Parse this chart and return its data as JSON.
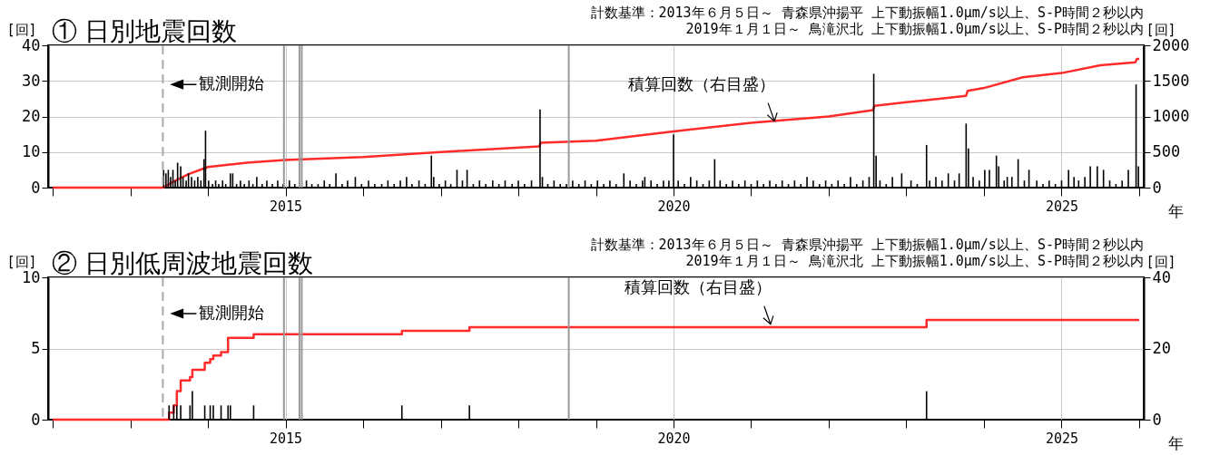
{
  "chart_data": [
    {
      "type": "bar",
      "title": "① 日別地震回数",
      "ylabel": "[回]",
      "y2label": "[回]",
      "xlabel": "年",
      "xlim": [
        2012,
        2026
      ],
      "xticks": [
        {
          "value": 2012,
          "label": null
        },
        {
          "value": 2013,
          "label": null
        },
        {
          "value": 2014,
          "label": null
        },
        2015,
        {
          "value": 2016,
          "label": null
        },
        {
          "value": 2017,
          "label": null
        },
        {
          "value": 2018,
          "label": null
        },
        {
          "value": 2019,
          "label": null
        },
        2020,
        {
          "value": 2021,
          "label": null
        },
        {
          "value": 2022,
          "label": null
        },
        {
          "value": 2023,
          "label": null
        },
        {
          "value": 2024,
          "label": null
        },
        2025,
        {
          "value": 2026,
          "label": null
        }
      ],
      "ylim": [
        0,
        40
      ],
      "yticks": [
        0,
        10,
        20,
        30,
        40
      ],
      "y2lim": [
        0,
        2000
      ],
      "y2ticks": [
        0,
        500,
        1000,
        1500,
        2000
      ],
      "grid": true,
      "series": [
        {
          "color": "#000000",
          "x": [
            2013.43,
            2013.46,
            2013.49,
            2013.52,
            2013.55,
            2013.58,
            2013.61,
            2013.65,
            2013.68,
            2013.72,
            2013.75,
            2013.79,
            2013.83,
            2013.87,
            2013.91,
            2013.95,
            2013.97,
            2014.01,
            2014.06,
            2014.1,
            2014.14,
            2014.19,
            2014.23,
            2014.29,
            2014.32,
            2014.37,
            2014.42,
            2014.47,
            2014.53,
            2014.58,
            2014.63,
            2014.7,
            2014.76,
            2014.83,
            2014.9,
            2014.97,
            2015.05,
            2015.12,
            2015.27,
            2015.34,
            2015.42,
            2015.5,
            2015.57,
            2015.65,
            2015.73,
            2015.8,
            2015.9,
            2015.98,
            2016.07,
            2016.15,
            2016.24,
            2016.32,
            2016.4,
            2016.48,
            2016.56,
            2016.63,
            2016.72,
            2016.8,
            2016.88,
            2016.91,
            2016.98,
            2017.06,
            2017.13,
            2017.21,
            2017.28,
            2017.34,
            2017.42,
            2017.5,
            2017.58,
            2017.67,
            2017.75,
            2017.83,
            2017.92,
            2018.0,
            2018.08,
            2018.17,
            2018.28,
            2018.31,
            2018.38,
            2018.46,
            2018.54,
            2018.62,
            2018.7,
            2018.78,
            2018.86,
            2018.94,
            2019.02,
            2019.1,
            2019.18,
            2019.26,
            2019.36,
            2019.44,
            2019.52,
            2019.6,
            2019.63,
            2019.71,
            2019.79,
            2019.87,
            2019.94,
            2020.0,
            2020.06,
            2020.14,
            2020.22,
            2020.3,
            2020.38,
            2020.46,
            2020.53,
            2020.6,
            2020.68,
            2020.76,
            2020.84,
            2020.92,
            2021.0,
            2021.08,
            2021.16,
            2021.24,
            2021.32,
            2021.4,
            2021.48,
            2021.56,
            2021.64,
            2021.72,
            2021.8,
            2021.88,
            2021.96,
            2022.04,
            2022.12,
            2022.2,
            2022.28,
            2022.36,
            2022.44,
            2022.52,
            2022.58,
            2022.61,
            2022.66,
            2022.74,
            2022.82,
            2022.94,
            2023.06,
            2023.14,
            2023.26,
            2023.3,
            2023.38,
            2023.46,
            2023.54,
            2023.62,
            2023.68,
            2023.77,
            2023.8,
            2023.86,
            2023.94,
            2024.01,
            2024.07,
            2024.16,
            2024.19,
            2024.26,
            2024.3,
            2024.36,
            2024.44,
            2024.52,
            2024.58,
            2024.68,
            2024.76,
            2024.84,
            2024.92,
            2025.0,
            2025.09,
            2025.16,
            2025.22,
            2025.3,
            2025.37,
            2025.46,
            2025.54,
            2025.62,
            2025.7,
            2025.78,
            2025.86,
            2025.96,
            2025.99
          ],
          "values": [
            5,
            4,
            5,
            3,
            5,
            2,
            7,
            6,
            3,
            2,
            4,
            3,
            2,
            3,
            2,
            8,
            16,
            2,
            1,
            2,
            1,
            2,
            1,
            4,
            4,
            1,
            2,
            1,
            2,
            1,
            3,
            1,
            2,
            1,
            2,
            1,
            2,
            1,
            2,
            1,
            1,
            2,
            1,
            4,
            1,
            2,
            3,
            1,
            2,
            1,
            1,
            2,
            1,
            2,
            3,
            1,
            2,
            1,
            9,
            3,
            1,
            2,
            1,
            5,
            2,
            5,
            1,
            2,
            1,
            2,
            1,
            2,
            1,
            2,
            1,
            2,
            22,
            3,
            1,
            2,
            1,
            1,
            2,
            1,
            2,
            1,
            2,
            1,
            2,
            1,
            4,
            2,
            1,
            2,
            3,
            2,
            1,
            2,
            2,
            15,
            2,
            1,
            3,
            2,
            1,
            2,
            8,
            2,
            1,
            2,
            1,
            2,
            1,
            2,
            1,
            2,
            1,
            2,
            1,
            2,
            1,
            3,
            2,
            1,
            2,
            1,
            2,
            1,
            3,
            1,
            2,
            3,
            32,
            9,
            2,
            1,
            3,
            4,
            2,
            1,
            12,
            2,
            3,
            2,
            4,
            2,
            4,
            18,
            11,
            3,
            2,
            5,
            5,
            9,
            6,
            2,
            3,
            3,
            8,
            2,
            5,
            2,
            1,
            2,
            1,
            2,
            5,
            3,
            2,
            3,
            6,
            6,
            5,
            2,
            1,
            2,
            5,
            29,
            6
          ]
        },
        {
          "type": "line",
          "axis": "y2",
          "color": "#ff2b2b",
          "x": [
            2012,
            2013.42,
            2013.55,
            2013.75,
            2014,
            2014.5,
            2015,
            2016,
            2017,
            2018.27,
            2018.29,
            2019,
            2020,
            2021,
            2022,
            2022.57,
            2022.59,
            2023,
            2023.77,
            2023.79,
            2024,
            2024.5,
            2025,
            2025.5,
            2025.95,
            2025.97,
            2026
          ],
          "values": [
            0,
            0,
            80,
            190,
            290,
            350,
            390,
            430,
            500,
            580,
            630,
            660,
            790,
            910,
            1000,
            1090,
            1150,
            1200,
            1290,
            1360,
            1400,
            1550,
            1610,
            1720,
            1760,
            1810,
            1810
          ]
        }
      ],
      "ref_lines": [
        {
          "axis": "x",
          "value": 2013.42,
          "color": "#aaaaaa",
          "line_style": "dashed"
        },
        {
          "axis": "x",
          "value": 2014.98,
          "color": "#999999",
          "line_style": "solid"
        },
        {
          "axis": "x",
          "value": 2015.18,
          "color": "#999999",
          "line_style": "solid"
        },
        {
          "axis": "x",
          "value": 2015.21,
          "color": "#999999",
          "line_style": "solid"
        },
        {
          "axis": "x",
          "value": 2018.65,
          "color": "#999999",
          "line_style": "solid"
        }
      ],
      "annotations": [
        {
          "text": "観測開始",
          "x": 2013.42,
          "y": 29
        },
        {
          "text": "積算回数（右目盛）",
          "x": 2021.3,
          "y": 18.7
        },
        "計数基準：2013年６月５日～ 青森県沖揚平 上下動振幅1.0μm/s以上、S-P時間２秒以内",
        "2019年１月１日～ 鳥滝沢北 上下動振幅1.0μm/s以上、S-P時間２秒以内"
      ]
    },
    {
      "type": "bar",
      "title": "② 日別低周波地震回数",
      "ylabel": "[回]",
      "y2label": "[回]",
      "xlabel": "年",
      "xlim": [
        2012,
        2026
      ],
      "xticks": [
        {
          "value": 2012,
          "label": null
        },
        {
          "value": 2013,
          "label": null
        },
        {
          "value": 2014,
          "label": null
        },
        2015,
        {
          "value": 2016,
          "label": null
        },
        {
          "value": 2017,
          "label": null
        },
        {
          "value": 2018,
          "label": null
        },
        {
          "value": 2019,
          "label": null
        },
        2020,
        {
          "value": 2021,
          "label": null
        },
        {
          "value": 2022,
          "label": null
        },
        {
          "value": 2023,
          "label": null
        },
        {
          "value": 2024,
          "label": null
        },
        2025,
        {
          "value": 2026,
          "label": null
        }
      ],
      "ylim": [
        0,
        10
      ],
      "yticks": [
        0,
        5,
        10
      ],
      "y2lim": [
        0,
        40
      ],
      "y2ticks": [
        0,
        20,
        40
      ],
      "grid": true,
      "series": [
        {
          "color": "#000000",
          "x": [
            2013.5,
            2013.56,
            2013.6,
            2013.65,
            2013.77,
            2013.8,
            2013.96,
            2014.03,
            2014.07,
            2014.17,
            2014.26,
            2014.29,
            2014.59,
            2016.5,
            2017.37,
            2023.26
          ],
          "values": [
            1,
            1,
            1,
            1,
            1,
            2,
            1,
            1,
            1,
            1,
            1,
            1,
            1,
            1,
            1,
            2
          ]
        },
        {
          "type": "step",
          "axis": "y2",
          "color": "#ff2b2b",
          "x": [
            2012,
            2013.5,
            2013.56,
            2013.6,
            2013.65,
            2013.77,
            2013.8,
            2013.96,
            2014.03,
            2014.07,
            2014.17,
            2014.26,
            2014.59,
            2016.5,
            2017.37,
            2023.26,
            2026
          ],
          "values": [
            0,
            2,
            4,
            8,
            11,
            12,
            14,
            16,
            17,
            18,
            19,
            23,
            24,
            25,
            26,
            28,
            28
          ]
        }
      ],
      "ref_lines": [
        {
          "axis": "x",
          "value": 2013.42,
          "color": "#aaaaaa",
          "line_style": "dashed"
        },
        {
          "axis": "x",
          "value": 2014.98,
          "color": "#999999",
          "line_style": "solid"
        },
        {
          "axis": "x",
          "value": 2015.18,
          "color": "#999999",
          "line_style": "solid"
        },
        {
          "axis": "x",
          "value": 2015.21,
          "color": "#999999",
          "line_style": "solid"
        },
        {
          "axis": "x",
          "value": 2018.65,
          "color": "#999999",
          "line_style": "solid"
        }
      ],
      "annotations": [
        {
          "text": "観測開始",
          "x": 2013.42,
          "y": 7.45
        },
        {
          "text": "積算回数（右目盛）",
          "x": 2021.25,
          "y": 6.7
        },
        "計数基準：2013年６月５日～ 青森県沖揚平 上下動振幅1.0μm/s以上、S-P時間２秒以内",
        "2019年１月１日～ 鳥滝沢北 上下動振幅1.0μm/s以上、S-P時間２秒以内"
      ]
    }
  ]
}
